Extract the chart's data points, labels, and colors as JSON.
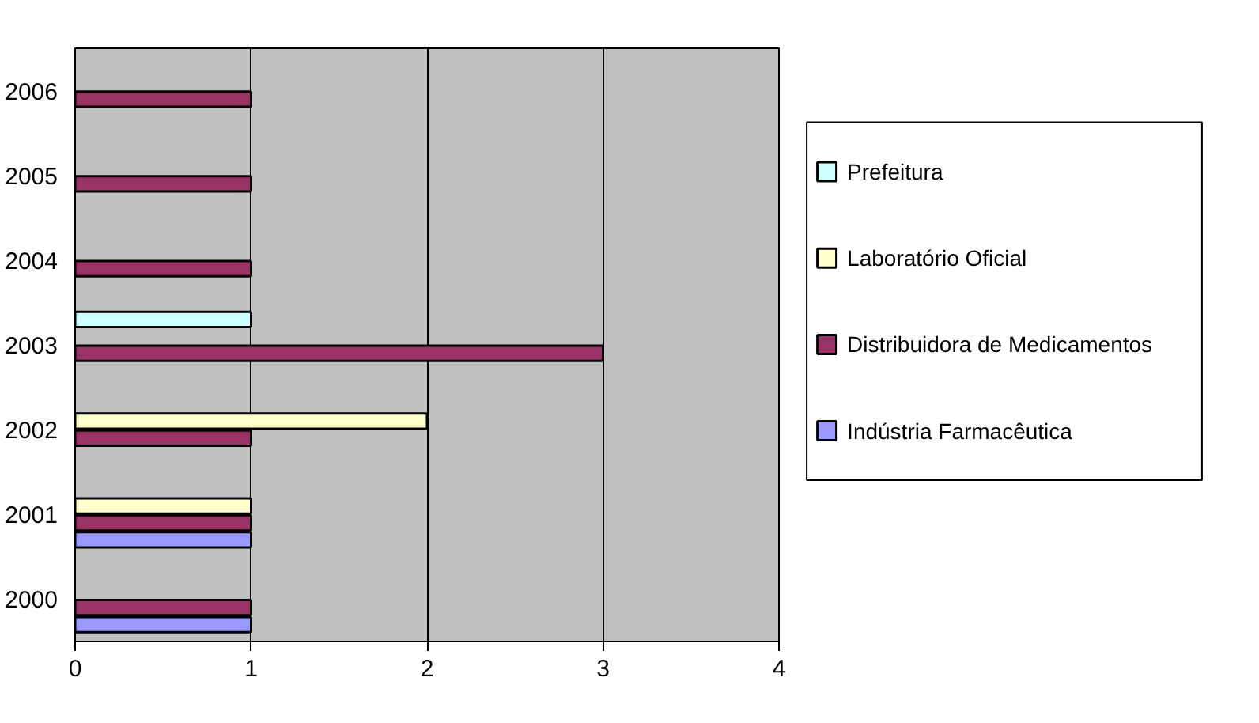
{
  "chart_data": {
    "type": "bar",
    "orientation": "horizontal",
    "categories": [
      "2006",
      "2005",
      "2004",
      "2003",
      "2002",
      "2001",
      "2000"
    ],
    "series": [
      {
        "name": "Indústria Farmacêutica",
        "color": "#9999ff",
        "values": [
          null,
          null,
          null,
          null,
          null,
          1,
          1
        ]
      },
      {
        "name": "Distribuidora de Medicamentos",
        "color": "#993366",
        "values": [
          1,
          1,
          1,
          3,
          1,
          1,
          1
        ]
      },
      {
        "name": "Laboratório Oficial",
        "color": "#ffffcc",
        "values": [
          null,
          null,
          null,
          null,
          2,
          1,
          null
        ]
      },
      {
        "name": "Prefeitura",
        "color": "#ccffff",
        "values": [
          null,
          null,
          null,
          1,
          null,
          null,
          null
        ]
      }
    ],
    "xlim": [
      0,
      4
    ],
    "xticks": [
      0,
      1,
      2,
      3,
      4
    ],
    "grid": "x",
    "legend": "right"
  }
}
